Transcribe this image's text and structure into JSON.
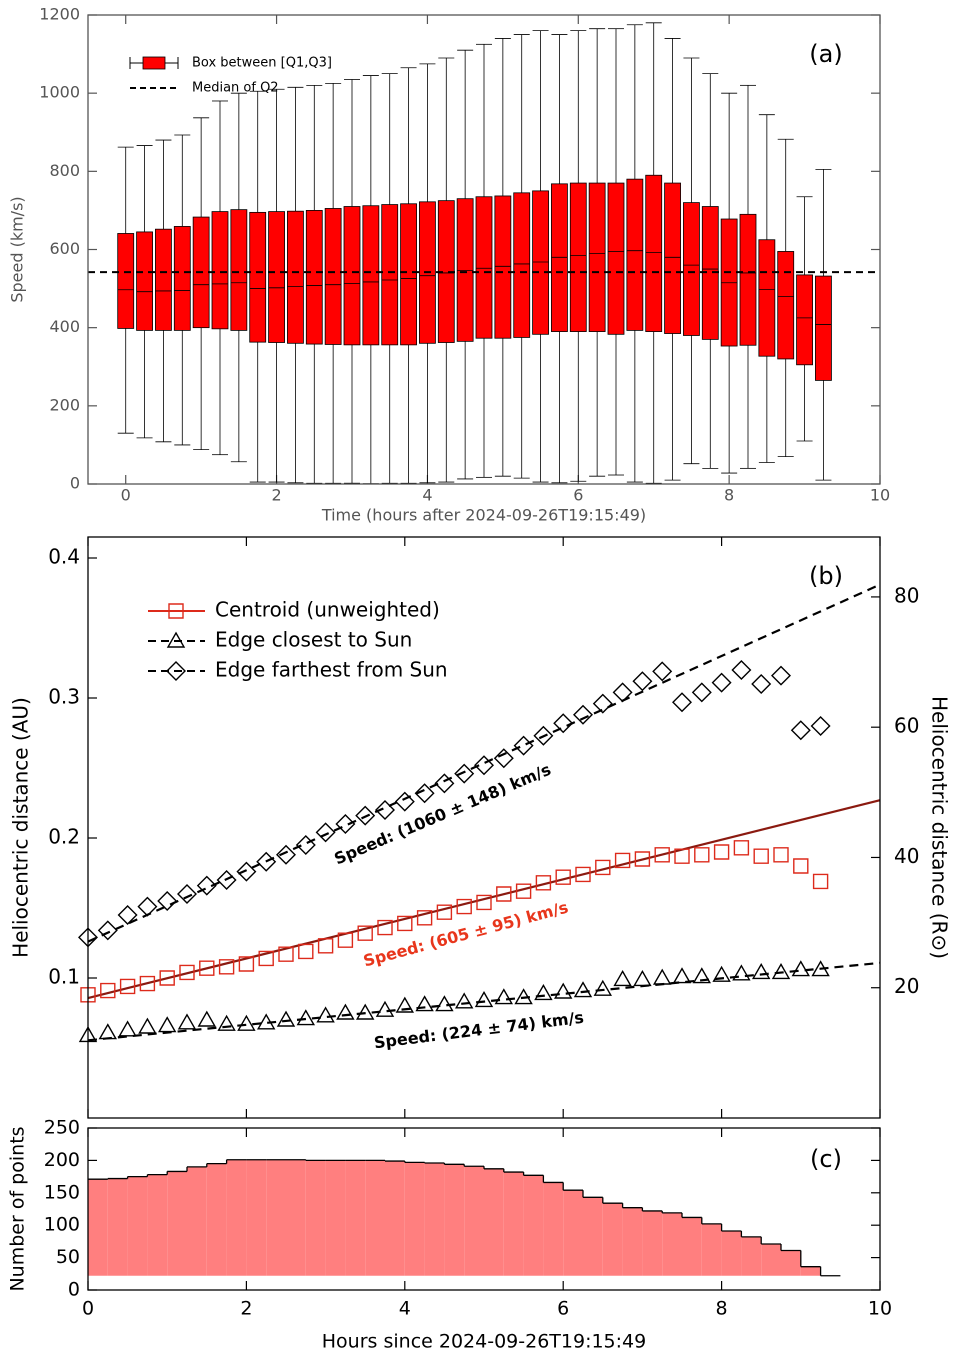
{
  "chart_data": [
    {
      "type": "box",
      "label": "(a)",
      "x_label": "Time (hours after 2024-09-26T19:15:49)",
      "y_label": "Speed (km/s)",
      "x": [
        0,
        0.25,
        0.5,
        0.75,
        1,
        1.25,
        1.5,
        1.75,
        2,
        2.25,
        2.5,
        2.75,
        3,
        3.25,
        3.5,
        3.75,
        4,
        4.25,
        4.5,
        4.75,
        5,
        5.25,
        5.5,
        5.75,
        6,
        6.25,
        6.5,
        6.75,
        7,
        7.25,
        7.5,
        7.75,
        8,
        8.25,
        8.5,
        8.75,
        9,
        9.25
      ],
      "series": [
        {
          "name": "Box between [Q1,Q3]",
          "color": "#ff0000",
          "whisker_low": [
            130,
            118,
            108,
            100,
            88,
            75,
            57,
            5,
            5,
            3,
            2,
            2,
            2,
            1,
            2,
            2,
            3,
            5,
            13,
            17,
            20,
            15,
            5,
            3,
            7,
            20,
            23,
            5,
            2,
            10,
            52,
            40,
            28,
            40,
            55,
            70,
            110,
            10
          ],
          "q1": [
            398,
            393,
            393,
            393,
            400,
            397,
            393,
            363,
            362,
            360,
            358,
            357,
            356,
            356,
            356,
            356,
            360,
            362,
            365,
            373,
            373,
            375,
            383,
            390,
            390,
            390,
            383,
            393,
            390,
            385,
            380,
            370,
            353,
            355,
            327,
            320,
            305,
            265
          ],
          "median": [
            497,
            492,
            494,
            495,
            510,
            512,
            515,
            500,
            502,
            505,
            508,
            510,
            513,
            517,
            522,
            526,
            533,
            540,
            546,
            552,
            557,
            563,
            568,
            580,
            585,
            590,
            595,
            597,
            592,
            580,
            560,
            550,
            515,
            540,
            498,
            480,
            425,
            408
          ],
          "q3": [
            641,
            645,
            652,
            659,
            683,
            697,
            702,
            695,
            697,
            698,
            700,
            705,
            710,
            712,
            715,
            717,
            722,
            725,
            730,
            735,
            737,
            745,
            750,
            768,
            770,
            770,
            770,
            780,
            790,
            770,
            720,
            710,
            678,
            690,
            625,
            595,
            535,
            532
          ],
          "whisker_high": [
            862,
            866,
            880,
            893,
            937,
            980,
            1000,
            1005,
            1010,
            1015,
            1020,
            1025,
            1035,
            1045,
            1050,
            1065,
            1075,
            1090,
            1110,
            1125,
            1140,
            1150,
            1160,
            1150,
            1160,
            1165,
            1165,
            1175,
            1180,
            1140,
            1090,
            1050,
            1000,
            1020,
            945,
            882,
            735,
            805
          ]
        }
      ],
      "reference_line": {
        "name": "Median of Q2",
        "value": 542,
        "color": "#000000"
      },
      "xlim": [
        -0.5,
        10
      ],
      "xticks": [
        0,
        2,
        4,
        6,
        8,
        10
      ],
      "ylim": [
        0,
        1200
      ],
      "yticks": [
        0,
        200,
        400,
        600,
        800,
        1000,
        1200
      ]
    },
    {
      "type": "scatter",
      "label": "(b)",
      "y_label": "Heliocentric distance (AU)",
      "y2_label": "Heliocentric distance (R⊙)",
      "x": [
        0,
        0.25,
        0.5,
        0.75,
        1,
        1.25,
        1.5,
        1.75,
        2,
        2.25,
        2.5,
        2.75,
        3,
        3.25,
        3.5,
        3.75,
        4,
        4.25,
        4.5,
        4.75,
        5,
        5.25,
        5.5,
        5.75,
        6,
        6.25,
        6.5,
        6.75,
        7,
        7.25,
        7.5,
        7.75,
        8,
        8.25,
        8.5,
        8.75,
        9,
        9.25
      ],
      "series": [
        {
          "name": "Centroid (unweighted)",
          "color": "#dd2a1b",
          "marker": "square",
          "fit_color": "#8b1a10",
          "fit_style": "solid",
          "values": [
            0.088,
            0.091,
            0.094,
            0.096,
            0.1,
            0.104,
            0.107,
            0.108,
            0.11,
            0.114,
            0.117,
            0.119,
            0.123,
            0.127,
            0.132,
            0.136,
            0.139,
            0.143,
            0.147,
            0.151,
            0.154,
            0.16,
            0.162,
            0.168,
            0.172,
            0.174,
            0.179,
            0.184,
            0.185,
            0.188,
            0.187,
            0.188,
            0.19,
            0.193,
            0.187,
            0.188,
            0.18,
            0.169
          ],
          "fit": {
            "x": [
              0,
              10
            ],
            "values": [
              0.0857,
              0.227
            ]
          }
        },
        {
          "name": "Edge closest to Sun",
          "color": "#000000",
          "marker": "triangle",
          "fit_color": "#000000",
          "fit_style": "dashed",
          "values": [
            0.059,
            0.061,
            0.063,
            0.065,
            0.066,
            0.068,
            0.07,
            0.067,
            0.067,
            0.068,
            0.07,
            0.071,
            0.073,
            0.075,
            0.075,
            0.077,
            0.08,
            0.081,
            0.081,
            0.083,
            0.084,
            0.086,
            0.086,
            0.089,
            0.09,
            0.091,
            0.092,
            0.099,
            0.099,
            0.1,
            0.101,
            0.101,
            0.102,
            0.103,
            0.104,
            0.104,
            0.106,
            0.106
          ],
          "fit": {
            "x": [
              0,
              10
            ],
            "values": [
              0.0555,
              0.1108
            ]
          }
        },
        {
          "name": "Edge farthest from Sun",
          "color": "#000000",
          "marker": "diamond",
          "fit_color": "#000000",
          "fit_style": "dashed",
          "values": [
            0.129,
            0.134,
            0.145,
            0.151,
            0.155,
            0.16,
            0.166,
            0.17,
            0.176,
            0.183,
            0.188,
            0.195,
            0.204,
            0.21,
            0.216,
            0.22,
            0.226,
            0.232,
            0.239,
            0.246,
            0.252,
            0.257,
            0.266,
            0.273,
            0.282,
            0.288,
            0.296,
            0.304,
            0.312,
            0.319,
            0.297,
            0.304,
            0.311,
            0.32,
            0.31,
            0.316,
            0.277,
            0.28
          ],
          "fit": {
            "x": [
              0,
              10
            ],
            "values": [
              0.126,
              0.381
            ]
          }
        }
      ],
      "annotations": [
        {
          "text": "Speed: (1060 ± 148) km/s",
          "color": "#000000"
        },
        {
          "text": "Speed: (605 ± 95) km/s",
          "color": "#e8361c"
        },
        {
          "text": "Speed: (224 ± 74) km/s",
          "color": "#000000"
        }
      ],
      "xlim": [
        0,
        10
      ],
      "xticks": [
        0,
        2,
        4,
        6,
        8,
        10
      ],
      "ylim": [
        0,
        0.415
      ],
      "yticks": [
        0.1,
        0.2,
        0.3,
        0.4
      ],
      "y2lim": [
        0,
        89.2
      ],
      "y2ticks": [
        20,
        40,
        60,
        80
      ]
    },
    {
      "type": "histogram",
      "label": "(c)",
      "x_label": "Hours since 2024-09-26T19:15:49",
      "y_label": "Number of points",
      "bins": [
        0,
        0.25,
        0.5,
        0.75,
        1,
        1.25,
        1.5,
        1.75,
        2,
        2.25,
        2.5,
        2.75,
        3,
        3.25,
        3.5,
        3.75,
        4,
        4.25,
        4.5,
        4.75,
        5,
        5.25,
        5.5,
        5.75,
        6,
        6.25,
        6.5,
        6.75,
        7,
        7.25,
        7.5,
        7.75,
        8,
        8.25,
        8.5,
        8.75,
        9,
        9.25,
        9.5
      ],
      "values": [
        171,
        172,
        175,
        178,
        183,
        190,
        195,
        201,
        201,
        201,
        201,
        200,
        200,
        200,
        200,
        199,
        197,
        196,
        194,
        191,
        187,
        182,
        177,
        166,
        154,
        143,
        134,
        127,
        122,
        119,
        112,
        102,
        91,
        82,
        71,
        61,
        36,
        22
      ],
      "color": "#ff7f7f",
      "xlim": [
        0,
        10
      ],
      "xticks": [
        0,
        2,
        4,
        6,
        8,
        10
      ],
      "ylim": [
        0,
        250
      ],
      "yticks": [
        0,
        50,
        100,
        150,
        200,
        250
      ]
    }
  ]
}
